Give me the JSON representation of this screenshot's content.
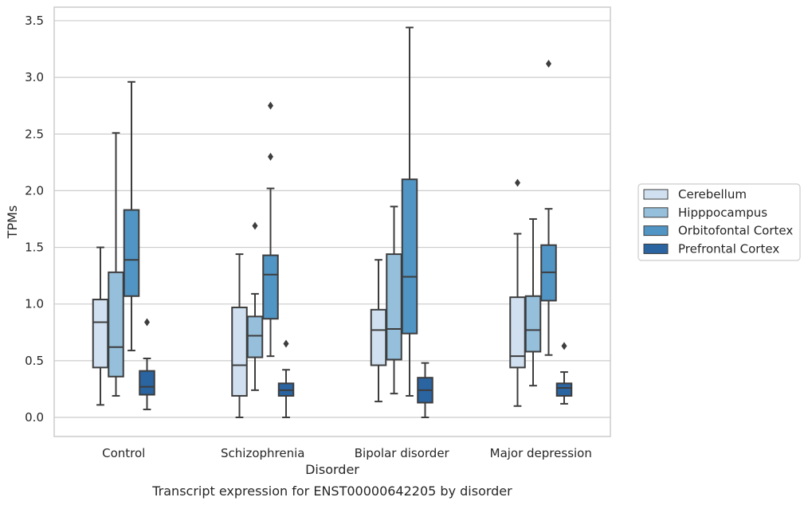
{
  "chart_data": {
    "type": "box",
    "title": "",
    "caption": "Transcript expression for ENST00000642205 by disorder",
    "xlabel": "Disorder",
    "ylabel": "TPMs",
    "ylim": [
      -0.17,
      3.62
    ],
    "yticks": [
      "0.0",
      "0.5",
      "1.0",
      "1.5",
      "2.0",
      "2.5",
      "3.0",
      "3.5"
    ],
    "grid": "horizontal",
    "legend_position": "right",
    "categories": [
      "Control",
      "Schizophrenia",
      "Bipolar disorder",
      "Major depression"
    ],
    "series": [
      {
        "name": "Cerebellum",
        "color": "#d0e0f0",
        "boxes": [
          {
            "low": 0.11,
            "q1": 0.44,
            "median": 0.84,
            "q3": 1.04,
            "high": 1.5,
            "outliers": []
          },
          {
            "low": 0.0,
            "q1": 0.19,
            "median": 0.46,
            "q3": 0.97,
            "high": 1.44,
            "outliers": []
          },
          {
            "low": 0.14,
            "q1": 0.46,
            "median": 0.77,
            "q3": 0.95,
            "high": 1.39,
            "outliers": []
          },
          {
            "low": 0.1,
            "q1": 0.44,
            "median": 0.54,
            "q3": 1.06,
            "high": 1.62,
            "outliers": [
              2.07
            ]
          }
        ]
      },
      {
        "name": "Hipppocampus",
        "color": "#95bfdb",
        "boxes": [
          {
            "low": 0.19,
            "q1": 0.36,
            "median": 0.62,
            "q3": 1.28,
            "high": 2.51,
            "outliers": []
          },
          {
            "low": 0.24,
            "q1": 0.53,
            "median": 0.72,
            "q3": 0.89,
            "high": 1.09,
            "outliers": [
              1.69
            ]
          },
          {
            "low": 0.21,
            "q1": 0.51,
            "median": 0.78,
            "q3": 1.44,
            "high": 1.86,
            "outliers": []
          },
          {
            "low": 0.28,
            "q1": 0.58,
            "median": 0.77,
            "q3": 1.07,
            "high": 1.75,
            "outliers": []
          }
        ]
      },
      {
        "name": "Orbitofontal Cortex",
        "color": "#5195c5",
        "boxes": [
          {
            "low": 0.59,
            "q1": 1.07,
            "median": 1.39,
            "q3": 1.83,
            "high": 2.96,
            "outliers": []
          },
          {
            "low": 0.54,
            "q1": 0.87,
            "median": 1.26,
            "q3": 1.43,
            "high": 2.02,
            "outliers": [
              2.3,
              2.75
            ]
          },
          {
            "low": 0.19,
            "q1": 0.74,
            "median": 1.24,
            "q3": 2.1,
            "high": 3.44,
            "outliers": []
          },
          {
            "low": 0.55,
            "q1": 1.03,
            "median": 1.28,
            "q3": 1.52,
            "high": 1.84,
            "outliers": [
              3.12
            ]
          }
        ]
      },
      {
        "name": "Prefrontal Cortex",
        "color": "#2a64a1",
        "boxes": [
          {
            "low": 0.07,
            "q1": 0.2,
            "median": 0.27,
            "q3": 0.41,
            "high": 0.52,
            "outliers": [
              0.84
            ]
          },
          {
            "low": 0.0,
            "q1": 0.19,
            "median": 0.24,
            "q3": 0.3,
            "high": 0.42,
            "outliers": [
              0.65
            ]
          },
          {
            "low": 0.0,
            "q1": 0.13,
            "median": 0.24,
            "q3": 0.35,
            "high": 0.48,
            "outliers": []
          },
          {
            "low": 0.12,
            "q1": 0.19,
            "median": 0.26,
            "q3": 0.3,
            "high": 0.4,
            "outliers": [
              0.63
            ]
          }
        ]
      }
    ]
  }
}
